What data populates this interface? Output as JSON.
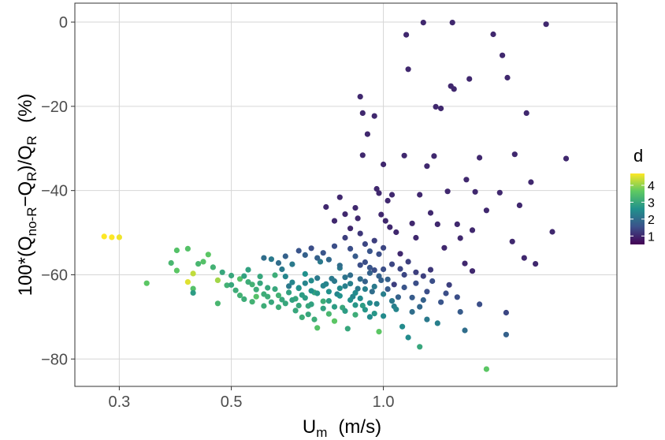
{
  "chart_data": {
    "type": "scatter",
    "xlabel": "U_m (m/s)",
    "xlabel_main": "U",
    "xlabel_sub": "m",
    "xlabel_units": "(m/s)",
    "ylabel": "100*(Q_no-R − Q_R)/Q_R (%)",
    "ylabel_parts": {
      "p1": "100*(Q",
      "s1": "no-R",
      "p2": "−Q",
      "s2": "R",
      "p3": ")/Q",
      "s3": "R",
      "units": "(%)"
    },
    "x_scale": "log",
    "xlim": [
      0.245,
      2.9
    ],
    "ylim": [
      -86.5,
      4.5
    ],
    "x_ticks": [
      0.3,
      0.5,
      1.0
    ],
    "x_tick_labels": [
      "0.3",
      "0.5",
      "1.0"
    ],
    "y_ticks": [
      0,
      -20,
      -40,
      -60,
      -80
    ],
    "y_tick_labels": [
      "0",
      "−20",
      "−40",
      "−60",
      "−80"
    ],
    "grid": true,
    "legend": {
      "title": "d",
      "position": "right",
      "type": "colorbar",
      "range": [
        0.5,
        4.7
      ],
      "ticks": [
        1,
        2,
        3,
        4
      ],
      "tick_labels": [
        "1",
        "2",
        "3",
        "4"
      ],
      "colormap": "viridis"
    },
    "points": [
      [
        0.28,
        -50.9,
        4.7
      ],
      [
        0.29,
        -51.1,
        4.7
      ],
      [
        0.3,
        -51.1,
        4.6
      ],
      [
        0.34,
        -62.0,
        3.6
      ],
      [
        0.38,
        -57.2,
        3.3
      ],
      [
        0.39,
        -54.2,
        3.5
      ],
      [
        0.39,
        -59.0,
        3.6
      ],
      [
        0.41,
        -53.8,
        3.5
      ],
      [
        0.41,
        -61.7,
        4.5
      ],
      [
        0.42,
        -59.7,
        4.3
      ],
      [
        0.42,
        -63.3,
        3.5
      ],
      [
        0.43,
        -57.4,
        3.3
      ],
      [
        0.42,
        -64.3,
        2.8
      ],
      [
        0.44,
        -56.9,
        3.5
      ],
      [
        0.45,
        -55.2,
        3.6
      ],
      [
        0.46,
        -58.2,
        3.2
      ],
      [
        0.47,
        -61.3,
        4.1
      ],
      [
        0.47,
        -66.8,
        3.3
      ],
      [
        0.48,
        -59.4,
        3.0
      ],
      [
        0.49,
        -62.5,
        3.2
      ],
      [
        0.5,
        -60.2,
        3.0
      ],
      [
        0.51,
        -63.7,
        3.1
      ],
      [
        0.52,
        -61.0,
        3.5
      ],
      [
        0.53,
        -65.8,
        3.1
      ],
      [
        0.54,
        -58.8,
        2.9
      ],
      [
        0.55,
        -62.3,
        3.2
      ],
      [
        0.56,
        -65.2,
        3.5
      ],
      [
        0.57,
        -60.4,
        3.0
      ],
      [
        0.58,
        -67.4,
        3.1
      ],
      [
        0.59,
        -63.1,
        3.0
      ],
      [
        0.6,
        -56.3,
        2.2
      ],
      [
        0.61,
        -60.1,
        3.1
      ],
      [
        0.62,
        -64.9,
        3.2
      ],
      [
        0.63,
        -58.7,
        2.2
      ],
      [
        0.64,
        -66.8,
        3.0
      ],
      [
        0.65,
        -62.7,
        2.2
      ],
      [
        0.66,
        -57.5,
        2.2
      ],
      [
        0.67,
        -65.7,
        3.0
      ],
      [
        0.68,
        -63.2,
        2.8
      ],
      [
        0.69,
        -70.1,
        3.1
      ],
      [
        0.7,
        -59.8,
        2.6
      ],
      [
        0.71,
        -67.4,
        3.0
      ],
      [
        0.72,
        -61.4,
        2.5
      ],
      [
        0.73,
        -64.2,
        3.0
      ],
      [
        0.74,
        -72.6,
        3.5
      ],
      [
        0.75,
        -56.9,
        2.2
      ],
      [
        0.76,
        -66.3,
        3.1
      ],
      [
        0.77,
        -62.2,
        2.4
      ],
      [
        0.78,
        -69.3,
        3.3
      ],
      [
        0.79,
        -60.9,
        2.2
      ],
      [
        0.8,
        -71.0,
        3.6
      ],
      [
        0.81,
        -64.6,
        2.4
      ],
      [
        0.82,
        -58.4,
        2.2
      ],
      [
        0.83,
        -67.8,
        3.0
      ],
      [
        0.84,
        -62.7,
        2.3
      ],
      [
        0.85,
        -72.8,
        3.0
      ],
      [
        0.86,
        -60.1,
        2.0
      ],
      [
        0.87,
        -65.2,
        2.4
      ],
      [
        0.88,
        -69.5,
        3.1
      ],
      [
        0.89,
        -63.3,
        2.2
      ],
      [
        0.9,
        -57.7,
        1.5
      ],
      [
        0.91,
        -67.3,
        2.8
      ],
      [
        0.92,
        -61.6,
        1.8
      ],
      [
        0.94,
        -70.0,
        2.5
      ],
      [
        0.95,
        -64.0,
        2.0
      ],
      [
        0.96,
        -58.9,
        1.5
      ],
      [
        0.97,
        -66.9,
        2.4
      ],
      [
        0.98,
        -73.5,
        3.6
      ],
      [
        0.99,
        -61.3,
        1.8
      ],
      [
        1.0,
        -69.8,
        2.5
      ],
      [
        1.02,
        -63.4,
        1.7
      ],
      [
        1.04,
        -57.5,
        1.4
      ],
      [
        1.05,
        -67.5,
        2.3
      ],
      [
        1.07,
        -65.3,
        1.8
      ],
      [
        1.09,
        -72.3,
        2.5
      ],
      [
        1.1,
        -60.0,
        1.4
      ],
      [
        1.12,
        -74.9,
        2.5
      ],
      [
        1.14,
        -68.8,
        2.0
      ],
      [
        1.16,
        -62.0,
        1.5
      ],
      [
        1.18,
        -77.1,
        3.0
      ],
      [
        1.2,
        -66.0,
        1.8
      ],
      [
        1.22,
        -70.6,
        2.2
      ],
      [
        1.25,
        -61.5,
        1.5
      ],
      [
        1.28,
        -71.5,
        2.3
      ],
      [
        1.33,
        -64.4,
        1.5
      ],
      [
        1.4,
        -65.3,
        1.5
      ],
      [
        1.45,
        -73.2,
        2.0
      ],
      [
        1.55,
        -67.0,
        1.5
      ],
      [
        1.6,
        -82.4,
        3.6
      ],
      [
        1.75,
        -74.2,
        1.8
      ],
      [
        1.75,
        -69.0,
        1.4
      ],
      [
        0.58,
        -56.0,
        2.0
      ],
      [
        0.62,
        -57.2,
        2.0
      ],
      [
        0.64,
        -55.6,
        1.8
      ],
      [
        0.68,
        -54.3,
        1.6
      ],
      [
        0.7,
        -55.3,
        1.8
      ],
      [
        0.72,
        -53.7,
        1.5
      ],
      [
        0.74,
        -56.0,
        1.8
      ],
      [
        0.76,
        -54.8,
        1.6
      ],
      [
        0.78,
        -56.4,
        1.9
      ],
      [
        0.8,
        -53.2,
        1.5
      ],
      [
        0.82,
        -57.8,
        2.0
      ],
      [
        0.84,
        -51.2,
        1.3
      ],
      [
        0.86,
        -53.8,
        1.5
      ],
      [
        0.88,
        -55.6,
        1.7
      ],
      [
        0.9,
        -50.2,
        1.2
      ],
      [
        0.92,
        -52.7,
        1.4
      ],
      [
        0.94,
        -54.4,
        1.6
      ],
      [
        0.96,
        -51.9,
        1.3
      ],
      [
        0.98,
        -55.1,
        1.5
      ],
      [
        1.0,
        -53.6,
        1.4
      ],
      [
        0.64,
        -60.4,
        2.4
      ],
      [
        0.66,
        -61.8,
        2.4
      ],
      [
        0.68,
        -63.1,
        2.6
      ],
      [
        0.7,
        -62.0,
        2.4
      ],
      [
        0.72,
        -63.8,
        2.6
      ],
      [
        0.74,
        -60.8,
        2.2
      ],
      [
        0.76,
        -62.6,
        2.4
      ],
      [
        0.78,
        -64.0,
        2.6
      ],
      [
        0.8,
        -61.5,
        2.2
      ],
      [
        0.82,
        -63.2,
        2.5
      ],
      [
        0.84,
        -60.6,
        2.1
      ],
      [
        0.86,
        -62.1,
        2.3
      ],
      [
        0.88,
        -64.3,
        2.5
      ],
      [
        0.9,
        -61.0,
        2.0
      ],
      [
        0.92,
        -63.4,
        2.3
      ],
      [
        0.94,
        -59.6,
        1.8
      ],
      [
        0.96,
        -62.8,
        2.2
      ],
      [
        0.98,
        -60.3,
        1.8
      ],
      [
        1.0,
        -64.6,
        2.3
      ],
      [
        1.02,
        -61.1,
        1.8
      ],
      [
        0.7,
        -65.5,
        2.8
      ],
      [
        0.72,
        -67.0,
        2.9
      ],
      [
        0.74,
        -64.4,
        2.7
      ],
      [
        0.76,
        -68.0,
        2.9
      ],
      [
        0.78,
        -66.2,
        2.8
      ],
      [
        0.8,
        -67.6,
        2.8
      ],
      [
        0.82,
        -65.0,
        2.6
      ],
      [
        0.84,
        -68.6,
        2.8
      ],
      [
        0.86,
        -66.0,
        2.6
      ],
      [
        0.88,
        -67.2,
        2.7
      ],
      [
        0.9,
        -65.6,
        2.5
      ],
      [
        0.92,
        -68.3,
        2.7
      ],
      [
        0.94,
        -66.7,
        2.5
      ],
      [
        0.96,
        -69.2,
        2.7
      ],
      [
        1.04,
        -66.2,
        2.2
      ],
      [
        1.06,
        -68.2,
        2.4
      ],
      [
        0.66,
        -66.0,
        2.9
      ],
      [
        0.68,
        -67.3,
        3.0
      ],
      [
        0.6,
        -66.5,
        3.0
      ],
      [
        0.62,
        -67.7,
        3.1
      ],
      [
        0.56,
        -63.5,
        3.1
      ],
      [
        0.58,
        -64.6,
        3.1
      ],
      [
        0.54,
        -61.7,
        3.1
      ],
      [
        0.52,
        -64.9,
        3.2
      ],
      [
        0.5,
        -62.4,
        3.0
      ],
      [
        0.53,
        -60.3,
        2.9
      ],
      [
        0.55,
        -66.4,
        3.2
      ],
      [
        0.57,
        -62.0,
        3.0
      ],
      [
        0.59,
        -65.2,
        3.1
      ],
      [
        0.61,
        -63.4,
        3.0
      ],
      [
        0.63,
        -65.9,
        3.0
      ],
      [
        0.65,
        -64.2,
        2.9
      ],
      [
        0.67,
        -68.5,
        3.0
      ],
      [
        0.69,
        -64.8,
        2.8
      ],
      [
        0.71,
        -69.4,
        3.0
      ],
      [
        0.73,
        -70.6,
        3.1
      ],
      [
        1.08,
        -58.6,
        1.4
      ],
      [
        1.1,
        -63.0,
        1.6
      ],
      [
        1.12,
        -56.9,
        1.3
      ],
      [
        1.14,
        -65.4,
        1.7
      ],
      [
        1.16,
        -59.4,
        1.3
      ],
      [
        1.18,
        -67.6,
        1.9
      ],
      [
        1.2,
        -60.3,
        1.3
      ],
      [
        1.22,
        -64.0,
        1.5
      ],
      [
        1.24,
        -58.8,
        1.2
      ],
      [
        1.3,
        -66.5,
        1.6
      ],
      [
        1.35,
        -62.4,
        1.3
      ],
      [
        1.42,
        -68.8,
        1.7
      ],
      [
        0.77,
        -43.9,
        1.0
      ],
      [
        0.8,
        -47.2,
        1.0
      ],
      [
        0.82,
        -41.6,
        1.0
      ],
      [
        0.84,
        -45.6,
        1.0
      ],
      [
        0.86,
        -49.0,
        1.0
      ],
      [
        0.88,
        -44.1,
        1.0
      ],
      [
        0.89,
        -46.6,
        1.0
      ],
      [
        0.9,
        -17.7,
        1.0
      ],
      [
        0.91,
        -21.6,
        1.0
      ],
      [
        0.91,
        -31.6,
        1.0
      ],
      [
        0.93,
        -26.6,
        1.0
      ],
      [
        0.96,
        -22.3,
        1.0
      ],
      [
        0.97,
        -39.6,
        1.0
      ],
      [
        0.98,
        -40.6,
        1.0
      ],
      [
        0.99,
        -45.7,
        1.0
      ],
      [
        1.0,
        -33.8,
        1.0
      ],
      [
        1.01,
        -47.2,
        1.0
      ],
      [
        1.02,
        -42.4,
        1.0
      ],
      [
        1.03,
        -48.7,
        1.0
      ],
      [
        1.04,
        -41.0,
        1.0
      ],
      [
        1.06,
        -49.9,
        1.0
      ],
      [
        1.08,
        -55.0,
        1.0
      ],
      [
        1.1,
        -31.7,
        1.0
      ],
      [
        1.11,
        -3.0,
        1.0
      ],
      [
        1.12,
        -11.2,
        1.0
      ],
      [
        1.14,
        -47.8,
        1.0
      ],
      [
        1.16,
        -51.2,
        1.0
      ],
      [
        1.18,
        -41.0,
        1.0
      ],
      [
        1.2,
        -0.1,
        1.0
      ],
      [
        1.22,
        -34.2,
        1.0
      ],
      [
        1.24,
        -45.3,
        1.0
      ],
      [
        1.26,
        -31.8,
        1.0
      ],
      [
        1.27,
        -20.1,
        1.0
      ],
      [
        1.28,
        -48.0,
        1.0
      ],
      [
        1.3,
        -20.5,
        1.0
      ],
      [
        1.32,
        -53.6,
        1.0
      ],
      [
        1.34,
        -40.2,
        1.0
      ],
      [
        1.36,
        -15.2,
        1.0
      ],
      [
        1.37,
        -0.1,
        1.0
      ],
      [
        1.38,
        -15.9,
        1.0
      ],
      [
        1.4,
        -48.0,
        1.0
      ],
      [
        1.42,
        -51.3,
        1.0
      ],
      [
        1.46,
        -37.4,
        1.0
      ],
      [
        1.48,
        -13.5,
        1.0
      ],
      [
        1.5,
        -49.4,
        1.0
      ],
      [
        1.52,
        -40.3,
        1.0
      ],
      [
        1.55,
        -32.2,
        1.0
      ],
      [
        1.6,
        -44.7,
        1.0
      ],
      [
        1.65,
        -2.9,
        1.0
      ],
      [
        1.7,
        -40.5,
        1.0
      ],
      [
        1.72,
        -7.9,
        1.0
      ],
      [
        1.76,
        -13.2,
        1.0
      ],
      [
        1.82,
        -31.4,
        1.0
      ],
      [
        1.86,
        -43.5,
        1.0
      ],
      [
        1.92,
        -21.6,
        1.0
      ],
      [
        1.96,
        -38.0,
        1.0
      ],
      [
        2.0,
        -57.4,
        1.0
      ],
      [
        2.1,
        -0.5,
        1.0
      ],
      [
        2.16,
        -49.8,
        1.0
      ],
      [
        2.3,
        -32.4,
        1.0
      ],
      [
        1.45,
        -57.3,
        1.0
      ],
      [
        1.5,
        -59.1,
        1.0
      ],
      [
        1.8,
        -52.1,
        1.0
      ],
      [
        1.9,
        -56.0,
        1.0
      ],
      [
        1.05,
        -62.3,
        1.3
      ],
      [
        1.0,
        -58.7,
        1.5
      ],
      [
        0.94,
        -58.3,
        1.6
      ],
      [
        0.92,
        -57.0,
        1.5
      ]
    ]
  }
}
